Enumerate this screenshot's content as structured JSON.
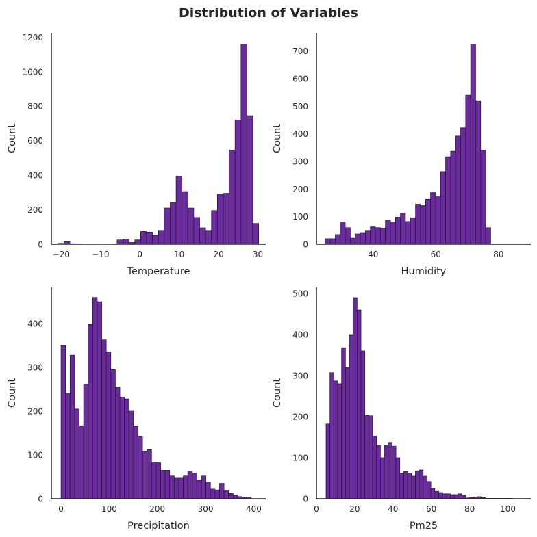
{
  "figure": {
    "title": "Distribution of Variables",
    "bar_fill": "#6a2c9a",
    "bar_edge": "#2a1040",
    "axis_color": "#262626"
  },
  "chart_data": [
    {
      "type": "bar",
      "subtype": "histogram",
      "xlabel": "Temperature",
      "ylabel": "Count",
      "xlim": [
        -22.5,
        32.0
      ],
      "ylim": [
        0,
        1225
      ],
      "xticks": [
        -20,
        -10,
        0,
        10,
        20,
        30
      ],
      "xtick_labels": [
        "−20",
        "−10",
        "0",
        "10",
        "20",
        "30"
      ],
      "yticks": [
        0,
        200,
        400,
        600,
        800,
        1000,
        1200
      ],
      "bin_start": -20.8,
      "bin_width": 1.5,
      "counts": [
        5,
        15,
        3,
        2,
        1,
        1,
        1,
        1,
        1,
        2,
        25,
        30,
        10,
        25,
        75,
        70,
        50,
        80,
        210,
        240,
        395,
        305,
        210,
        155,
        95,
        80,
        195,
        290,
        295,
        545,
        720,
        1160,
        745,
        120
      ]
    },
    {
      "type": "bar",
      "subtype": "histogram",
      "xlabel": "Humidity",
      "ylabel": "Count",
      "xlim": [
        21.9,
        90.3
      ],
      "ylim": [
        0,
        766
      ],
      "xticks": [
        40,
        60,
        80
      ],
      "xtick_labels": [
        "40",
        "60",
        "80"
      ],
      "yticks": [
        0,
        100,
        200,
        300,
        400,
        500,
        600,
        700
      ],
      "bin_start": 24.7,
      "bin_width": 1.6,
      "counts": [
        20,
        20,
        35,
        78,
        60,
        22,
        37,
        42,
        50,
        63,
        60,
        58,
        87,
        80,
        98,
        112,
        82,
        96,
        145,
        140,
        163,
        187,
        172,
        263,
        317,
        337,
        392,
        422,
        540,
        725,
        520,
        340,
        60
      ]
    },
    {
      "type": "bar",
      "subtype": "histogram",
      "xlabel": "Precipitation",
      "ylabel": "Count",
      "xlim": [
        -20,
        425
      ],
      "ylim": [
        0,
        483
      ],
      "xticks": [
        0,
        100,
        200,
        300,
        400
      ],
      "xtick_labels": [
        "0",
        "100",
        "200",
        "300",
        "400"
      ],
      "yticks": [
        0,
        100,
        200,
        300,
        400
      ],
      "bin_start": 0.0,
      "bin_width": 9.4,
      "counts": [
        350,
        240,
        328,
        205,
        165,
        262,
        398,
        460,
        450,
        363,
        335,
        295,
        255,
        232,
        228,
        200,
        165,
        142,
        108,
        112,
        82,
        82,
        65,
        65,
        52,
        47,
        47,
        52,
        63,
        58,
        42,
        52,
        38,
        22,
        20,
        35,
        18,
        12,
        8,
        5,
        3,
        3
      ]
    },
    {
      "type": "bar",
      "subtype": "histogram",
      "xlabel": "Pm25",
      "ylabel": "Count",
      "xlim": [
        0,
        112
      ],
      "ylim": [
        0,
        515
      ],
      "xticks": [
        0,
        20,
        40,
        60,
        80,
        100
      ],
      "xtick_labels": [
        "0",
        "20",
        "40",
        "60",
        "80",
        "100"
      ],
      "yticks": [
        0,
        100,
        200,
        300,
        400,
        500
      ],
      "bin_start": 5.0,
      "bin_width": 2.03,
      "counts": [
        182,
        307,
        287,
        280,
        368,
        320,
        400,
        490,
        460,
        360,
        203,
        202,
        152,
        130,
        100,
        130,
        137,
        128,
        100,
        62,
        66,
        62,
        55,
        68,
        70,
        55,
        42,
        25,
        18,
        15,
        12,
        12,
        10,
        10,
        12,
        8,
        2,
        3,
        4,
        5,
        3,
        1,
        1,
        1,
        1,
        1,
        1,
        1
      ]
    }
  ]
}
